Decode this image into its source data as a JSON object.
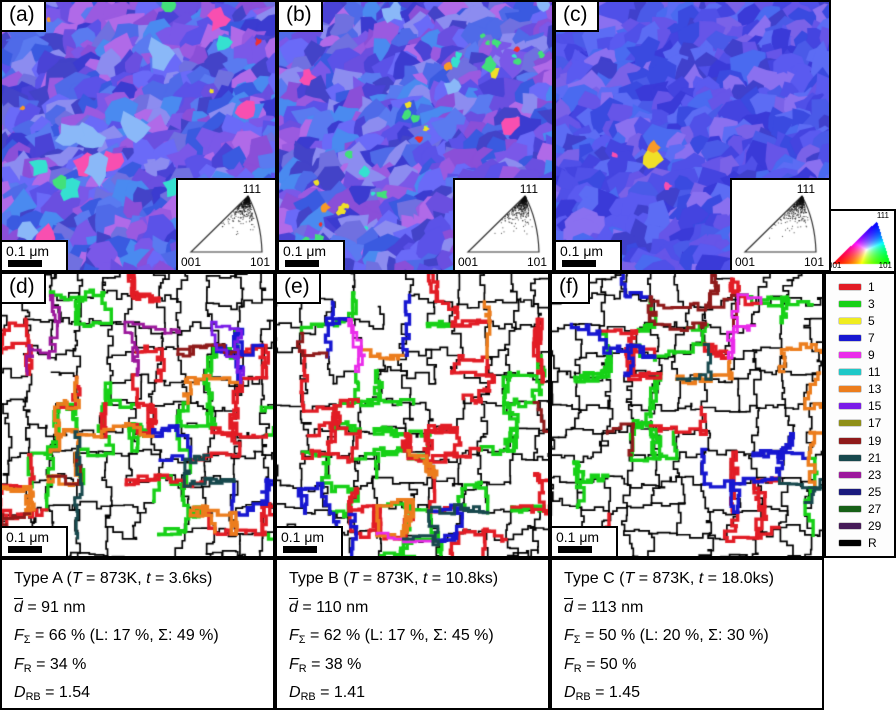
{
  "panels": {
    "a": {
      "label": "(a)"
    },
    "b": {
      "label": "(b)"
    },
    "c": {
      "label": "(c)"
    },
    "d": {
      "label": "(d)"
    },
    "e": {
      "label": "(e)"
    },
    "f": {
      "label": "(f)"
    }
  },
  "scale_bar": {
    "text": "0.1 μm"
  },
  "ipf": {
    "tr": "111",
    "bl": "001",
    "br": "101"
  },
  "color_key": {
    "tr": "111",
    "bl": "001",
    "br": "101"
  },
  "legend": {
    "entries": [
      {
        "label": "1",
        "color": "#e21c25"
      },
      {
        "label": "3",
        "color": "#17d117"
      },
      {
        "label": "5",
        "color": "#efec1f"
      },
      {
        "label": "7",
        "color": "#1717d1"
      },
      {
        "label": "9",
        "color": "#ea2bea"
      },
      {
        "label": "11",
        "color": "#1fc8c8"
      },
      {
        "label": "13",
        "color": "#ec7d1d"
      },
      {
        "label": "15",
        "color": "#7a1ce8"
      },
      {
        "label": "17",
        "color": "#8f8f17"
      },
      {
        "label": "19",
        "color": "#8f1a1a"
      },
      {
        "label": "21",
        "color": "#17484d"
      },
      {
        "label": "23",
        "color": "#9c189c"
      },
      {
        "label": "25",
        "color": "#1a1a7d"
      },
      {
        "label": "27",
        "color": "#176017"
      },
      {
        "label": "29",
        "color": "#451a57"
      },
      {
        "label": "R",
        "color": "#000000"
      }
    ]
  },
  "stats": [
    {
      "lines": [
        [
          [
            "Type A (",
            ""
          ],
          [
            "T",
            "i"
          ],
          [
            " = 873K, ",
            ""
          ],
          [
            "t",
            "i"
          ],
          [
            " = 3.6ks)",
            ""
          ]
        ],
        [
          [
            "d",
            "io"
          ],
          [
            " = 91 nm",
            ""
          ]
        ],
        [
          [
            "F",
            "i"
          ],
          [
            "Σ",
            "sub"
          ],
          [
            " = 66 % (L: 17 %, ",
            ""
          ],
          [
            "Σ",
            ""
          ],
          [
            ": 49 %)",
            ""
          ]
        ],
        [
          [
            "F",
            "i"
          ],
          [
            "R",
            "sub"
          ],
          [
            " = 34 %",
            ""
          ]
        ],
        [
          [
            "D",
            "i"
          ],
          [
            "RB",
            "sub"
          ],
          [
            " = 1.54",
            ""
          ]
        ]
      ]
    },
    {
      "lines": [
        [
          [
            "Type B (",
            ""
          ],
          [
            "T",
            "i"
          ],
          [
            " = 873K, ",
            ""
          ],
          [
            "t",
            "i"
          ],
          [
            " = 10.8ks)",
            ""
          ]
        ],
        [
          [
            "d",
            "io"
          ],
          [
            " = 110 nm",
            ""
          ]
        ],
        [
          [
            "F",
            "i"
          ],
          [
            "Σ",
            "sub"
          ],
          [
            " = 62 % (L: 17 %, ",
            ""
          ],
          [
            "Σ",
            ""
          ],
          [
            ": 45 %)",
            ""
          ]
        ],
        [
          [
            "F",
            "i"
          ],
          [
            "R",
            "sub"
          ],
          [
            " = 38 %",
            ""
          ]
        ],
        [
          [
            "D",
            "i"
          ],
          [
            "RB",
            "sub"
          ],
          [
            " = 1.41",
            ""
          ]
        ]
      ]
    },
    {
      "lines": [
        [
          [
            "Type C (",
            ""
          ],
          [
            "T",
            "i"
          ],
          [
            " = 873K, ",
            ""
          ],
          [
            "t",
            "i"
          ],
          [
            " = 18.0ks)",
            ""
          ]
        ],
        [
          [
            "d",
            "io"
          ],
          [
            " = 113 nm",
            ""
          ]
        ],
        [
          [
            "F",
            "i"
          ],
          [
            "Σ",
            "sub"
          ],
          [
            " = 50 % (L: 20 %, ",
            ""
          ],
          [
            "Σ",
            ""
          ],
          [
            ": 30 %)",
            ""
          ]
        ],
        [
          [
            "F",
            "i"
          ],
          [
            "R",
            "sub"
          ],
          [
            " = 50 %",
            ""
          ]
        ],
        [
          [
            "D",
            "i"
          ],
          [
            "RB",
            "sub"
          ],
          [
            " = 1.45",
            ""
          ]
        ]
      ]
    }
  ],
  "maps": {
    "ebsd_base_ab": [
      "#4a43d6",
      "#5b52e8",
      "#6a4fe0",
      "#7a58e8",
      "#4f6ae8",
      "#3b3bd0",
      "#8a4fd8",
      "#5a7af0",
      "#4343c8",
      "#6a6af8",
      "#9a5ae0",
      "#3a5ae0",
      "#8c8cf0",
      "#7070e0",
      "#b06ae8",
      "#4a8af0"
    ],
    "ebsd_base_c": [
      "#3a3ad8",
      "#4444e0",
      "#5050e8",
      "#4a5ae8",
      "#6655e8",
      "#3a4ae0",
      "#5a5af0",
      "#7a62e8",
      "#4a6af0",
      "#8a70f0",
      "#4040cc",
      "#5c6cf4"
    ],
    "ebsd_accents": {
      "pink": "#f84fb0",
      "cyan": "#35e0d0",
      "green": "#42e07a",
      "yellow": "#f0e028",
      "orange": "#f89a28",
      "red": "#f03030",
      "lightblue": "#8ab8f8"
    },
    "gb_black": "#000000"
  }
}
